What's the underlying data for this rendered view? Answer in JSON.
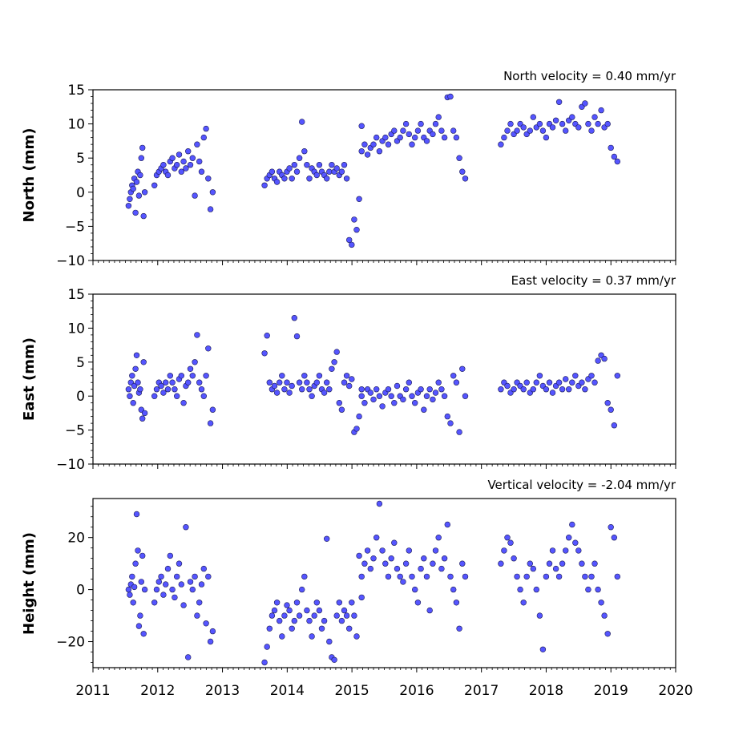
{
  "chart_data": [
    {
      "type": "scatter",
      "ylabel": "North (mm)",
      "annotation": "North velocity = 0.40 mm/yr",
      "ylim": [
        -10,
        15
      ],
      "yticks": [
        -10,
        -5,
        0,
        5,
        10,
        15
      ],
      "xlim": [
        2011,
        2020
      ],
      "color": "#5555ff",
      "segments": [
        {
          "start": 2011.55,
          "end": 2011.8,
          "values": [
            -2,
            -1,
            0,
            1,
            0.5,
            2,
            -3,
            1.5,
            3,
            -0.5,
            2.5,
            5,
            6.5,
            -3.5,
            0
          ]
        },
        {
          "start": 2011.95,
          "end": 2012.85,
          "values": [
            1,
            2.5,
            3,
            3.5,
            4,
            3,
            2.5,
            4.5,
            5,
            3.5,
            4,
            5.5,
            3,
            4.5,
            3.5,
            6,
            4,
            5,
            -0.5,
            7,
            4.5,
            3,
            8,
            9.3,
            2,
            -2.5,
            0
          ]
        },
        {
          "start": 2013.65,
          "end": 2015.15,
          "values": [
            1,
            2,
            2.5,
            3,
            2,
            1.5,
            3,
            2.5,
            2,
            3,
            3.5,
            2,
            4,
            3,
            5,
            10.3,
            6,
            4,
            2,
            3.5,
            3,
            2.5,
            4,
            3,
            2.5,
            2,
            3,
            4,
            3,
            3.5,
            2.5,
            3,
            4,
            2,
            -7,
            -7.7,
            -4,
            -5.5,
            -1,
            9.7
          ]
        },
        {
          "start": 2015.15,
          "end": 2016.75,
          "values": [
            6,
            7,
            5.5,
            6.5,
            7,
            8,
            6,
            7.5,
            8,
            7,
            8.5,
            9,
            7.5,
            8,
            9,
            10,
            8.5,
            7,
            8,
            9,
            10,
            8,
            7.5,
            9,
            8.5,
            10,
            11,
            9,
            8,
            13.9,
            14,
            9,
            8,
            5,
            3,
            2
          ]
        },
        {
          "start": 2017.3,
          "end": 2019.1,
          "values": [
            7,
            8,
            9,
            10,
            8.5,
            9,
            10,
            9.5,
            8.5,
            9,
            11,
            9.5,
            10,
            9,
            8,
            10,
            9.5,
            10.5,
            13.2,
            10,
            9,
            10.5,
            11,
            10,
            9.5,
            12.5,
            13,
            10,
            9,
            11,
            10,
            12,
            9.5,
            10,
            6.5,
            5.2,
            4.5
          ]
        }
      ]
    },
    {
      "type": "scatter",
      "ylabel": "East (mm)",
      "annotation": "East velocity = 0.37 mm/yr",
      "ylim": [
        -10,
        15
      ],
      "yticks": [
        -10,
        -5,
        0,
        5,
        10,
        15
      ],
      "xlim": [
        2011,
        2020
      ],
      "color": "#5555ff",
      "segments": [
        {
          "start": 2011.55,
          "end": 2011.8,
          "values": [
            1,
            0,
            2,
            3,
            -1,
            1.5,
            4,
            6,
            2,
            0.5,
            1,
            -2,
            -3.3,
            5,
            -2.5
          ]
        },
        {
          "start": 2011.95,
          "end": 2012.85,
          "values": [
            0,
            1,
            2,
            1.5,
            0.5,
            2,
            1,
            3,
            2,
            1,
            0,
            2.5,
            3,
            -1,
            1.5,
            2,
            4,
            3,
            5,
            9,
            2,
            1,
            0,
            3,
            7,
            -4,
            -2
          ]
        },
        {
          "start": 2013.65,
          "end": 2015.15,
          "values": [
            6.3,
            8.9,
            2,
            1,
            1.5,
            0.5,
            2,
            3,
            1,
            2,
            0.5,
            1.5,
            11.5,
            8.8,
            2,
            1,
            3,
            2,
            1,
            0,
            1.5,
            2,
            3,
            1,
            0.5,
            2,
            1,
            4,
            5,
            6.5,
            -1,
            -2,
            2,
            3,
            1.5,
            2.5,
            -5.3,
            -4.8,
            -3,
            1
          ]
        },
        {
          "start": 2015.15,
          "end": 2016.75,
          "values": [
            0,
            -1,
            1,
            0.5,
            -0.5,
            1,
            0,
            -1.5,
            0.5,
            1,
            0,
            -1,
            1.5,
            0,
            -0.5,
            1,
            2,
            0,
            -1,
            0.5,
            1,
            -2,
            0,
            1,
            -0.5,
            0.5,
            2,
            1,
            0,
            -3,
            -4,
            3,
            2,
            -5.3,
            4,
            0
          ]
        },
        {
          "start": 2017.3,
          "end": 2019.1,
          "values": [
            1,
            2,
            1.5,
            0.5,
            1,
            2,
            1.5,
            1,
            2,
            0.5,
            1,
            2,
            3,
            1.5,
            1,
            2,
            0.5,
            1.5,
            2,
            1,
            2.5,
            1,
            2,
            3,
            1.5,
            2,
            1,
            2.5,
            3,
            2,
            5.2,
            6,
            5.5,
            -1,
            -2,
            -4.3,
            3
          ]
        }
      ]
    },
    {
      "type": "scatter",
      "ylabel": "Height (mm)",
      "annotation": "Vertical velocity = -2.04 mm/yr",
      "ylim": [
        -30,
        35
      ],
      "yticks": [
        -20,
        0,
        20
      ],
      "xlim": [
        2011,
        2020
      ],
      "xticks": [
        2011,
        2012,
        2013,
        2014,
        2015,
        2016,
        2017,
        2018,
        2019,
        2020
      ],
      "color": "#5555ff",
      "segments": [
        {
          "start": 2011.55,
          "end": 2011.8,
          "values": [
            0,
            -2,
            2,
            5,
            -5,
            1,
            10,
            29,
            15,
            -14,
            -10,
            3,
            13,
            -17,
            0
          ]
        },
        {
          "start": 2011.95,
          "end": 2012.85,
          "values": [
            -5,
            0,
            3,
            5,
            -2,
            2,
            8,
            13,
            0,
            -3,
            5,
            10,
            2,
            -6,
            24,
            -26,
            3,
            0,
            5,
            -10,
            -5,
            2,
            8,
            -13,
            5,
            -20,
            -16
          ]
        },
        {
          "start": 2013.65,
          "end": 2015.15,
          "values": [
            -28,
            -22,
            -15,
            -10,
            -8,
            -5,
            -12,
            -18,
            -10,
            -6,
            -8,
            -15,
            -12,
            -5,
            -10,
            0,
            5,
            -8,
            -12,
            -18,
            -10,
            -5,
            -8,
            -15,
            -12,
            19.5,
            -20,
            -26,
            -27,
            -10,
            -5,
            -12,
            -8,
            -10,
            -15,
            -5,
            -10,
            -18,
            13,
            -3
          ]
        },
        {
          "start": 2015.15,
          "end": 2016.75,
          "values": [
            5,
            10,
            15,
            8,
            12,
            20,
            33,
            15,
            10,
            5,
            12,
            18,
            8,
            5,
            3,
            10,
            15,
            5,
            0,
            -5,
            8,
            12,
            5,
            -8,
            10,
            15,
            20,
            8,
            12,
            25,
            5,
            0,
            -5,
            -15,
            10,
            5
          ]
        },
        {
          "start": 2017.3,
          "end": 2019.1,
          "values": [
            10,
            15,
            20,
            18,
            12,
            5,
            0,
            -5,
            5,
            10,
            8,
            0,
            -10,
            -23,
            5,
            10,
            15,
            8,
            5,
            10,
            15,
            20,
            25,
            18,
            15,
            10,
            5,
            0,
            5,
            10,
            0,
            -5,
            -10,
            -17,
            24,
            20,
            5
          ]
        }
      ]
    }
  ]
}
